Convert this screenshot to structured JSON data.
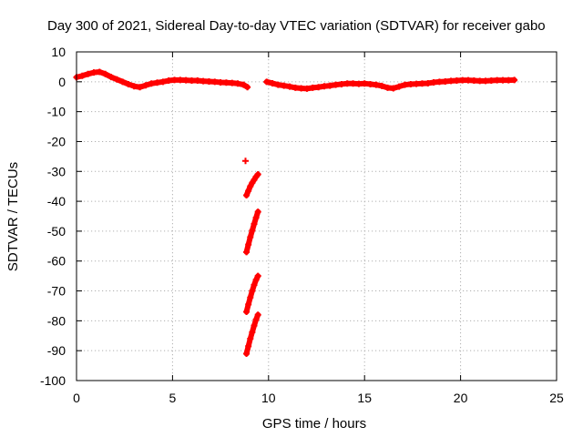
{
  "chart_data": {
    "type": "scatter",
    "title": "Day 300 of 2021, Sidereal Day-to-day VTEC variation (SDTVAR) for receiver gabo",
    "xlabel": "GPS time / hours",
    "ylabel": "SDTVAR / TECUs",
    "xlim": [
      0,
      25
    ],
    "ylim": [
      -100,
      10
    ],
    "xticks": [
      0,
      5,
      10,
      15,
      20,
      25
    ],
    "xtick_labels": [
      "0",
      "5",
      "10",
      "15",
      "20",
      "25"
    ],
    "yticks": [
      10,
      0,
      -10,
      -20,
      -30,
      -40,
      -50,
      -60,
      -70,
      -80,
      -90,
      -100
    ],
    "ytick_labels": [
      "10",
      "0",
      "-10",
      "-20",
      "-30",
      "-40",
      "-50",
      "-60",
      "-70",
      "-80",
      "-90",
      "-100"
    ],
    "grid": true,
    "marker": "plus",
    "color": "#ff0000",
    "series": [
      {
        "name": "main-trace-morning",
        "x": [
          0.0,
          0.3,
          0.6,
          0.9,
          1.2,
          1.5,
          1.8,
          2.1,
          2.4,
          2.7,
          3.0,
          3.3,
          3.6,
          3.9,
          4.2,
          4.5,
          4.8,
          5.1,
          5.4,
          5.7,
          6.0,
          6.3,
          6.6,
          6.9,
          7.2,
          7.5,
          7.8,
          8.1,
          8.4,
          8.7,
          8.9
        ],
        "y": [
          1.5,
          2.0,
          2.6,
          3.1,
          3.3,
          2.6,
          1.6,
          0.8,
          0.0,
          -0.8,
          -1.5,
          -1.8,
          -1.2,
          -0.6,
          -0.3,
          0.0,
          0.4,
          0.6,
          0.6,
          0.5,
          0.4,
          0.4,
          0.2,
          0.1,
          0.0,
          -0.2,
          -0.3,
          -0.4,
          -0.6,
          -1.0,
          -1.8
        ]
      },
      {
        "name": "main-trace-afternoon",
        "x": [
          9.9,
          10.2,
          10.5,
          10.8,
          11.1,
          11.4,
          11.7,
          12.0,
          12.3,
          12.6,
          12.9,
          13.2,
          13.5,
          13.8,
          14.1,
          14.4,
          14.7,
          15.0,
          15.3,
          15.6,
          15.9,
          16.2,
          16.5,
          16.8,
          17.1,
          17.4,
          17.7,
          18.0,
          18.3,
          18.6,
          18.9,
          19.2,
          19.5,
          19.8,
          20.1,
          20.4,
          20.7,
          21.0,
          21.3,
          21.6,
          21.9,
          22.2,
          22.5,
          22.8
        ],
        "y": [
          0.0,
          -0.5,
          -1.0,
          -1.3,
          -1.6,
          -2.0,
          -2.2,
          -2.3,
          -2.0,
          -1.8,
          -1.5,
          -1.3,
          -1.0,
          -0.8,
          -0.6,
          -0.6,
          -0.7,
          -0.6,
          -0.8,
          -1.0,
          -1.4,
          -2.0,
          -2.2,
          -1.6,
          -1.0,
          -0.8,
          -0.7,
          -0.6,
          -0.5,
          -0.2,
          0.0,
          0.1,
          0.3,
          0.4,
          0.5,
          0.5,
          0.4,
          0.3,
          0.3,
          0.4,
          0.5,
          0.5,
          0.5,
          0.6
        ]
      },
      {
        "name": "outlier",
        "x": [
          8.8
        ],
        "y": [
          -26.5
        ]
      },
      {
        "name": "descent-arc-1",
        "x": [
          8.85,
          8.95,
          9.05,
          9.15,
          9.25,
          9.35,
          9.45
        ],
        "y": [
          -38,
          -36.5,
          -35,
          -33.8,
          -32.8,
          -31.8,
          -31
        ]
      },
      {
        "name": "descent-arc-2",
        "x": [
          8.85,
          8.95,
          9.05,
          9.15,
          9.25,
          9.35,
          9.45
        ],
        "y": [
          -57,
          -54.5,
          -52,
          -49.8,
          -47.6,
          -45.5,
          -43.5
        ]
      },
      {
        "name": "descent-arc-3",
        "x": [
          8.85,
          8.95,
          9.05,
          9.15,
          9.25,
          9.35,
          9.45
        ],
        "y": [
          -77,
          -74.5,
          -72.2,
          -70,
          -68,
          -66.3,
          -65
        ]
      },
      {
        "name": "descent-arc-4",
        "x": [
          8.85,
          8.95,
          9.05,
          9.15,
          9.25,
          9.35,
          9.45
        ],
        "y": [
          -91,
          -88.5,
          -86,
          -83.8,
          -81.6,
          -79.6,
          -78
        ]
      }
    ]
  }
}
